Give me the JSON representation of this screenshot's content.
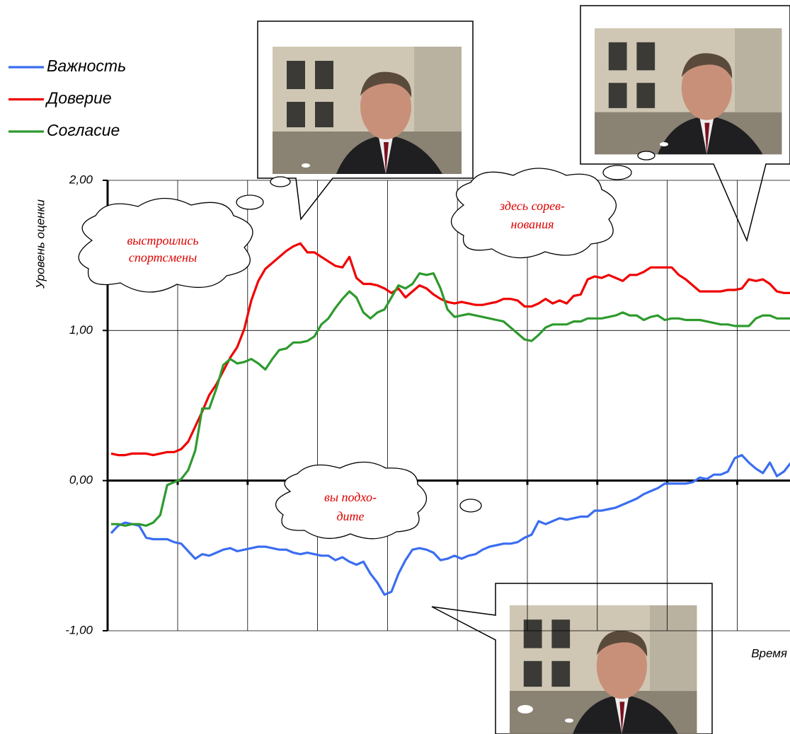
{
  "chart_data": {
    "type": "line",
    "y_label": "Уровень оценки",
    "x_label": "Время",
    "ylim": [
      -1,
      2
    ],
    "yticks": [
      {
        "value": 2,
        "label": "2,00"
      },
      {
        "value": 1,
        "label": "1,00"
      },
      {
        "value": 0,
        "label": "0,00"
      },
      {
        "value": -1,
        "label": "-1,00"
      }
    ],
    "grid": true,
    "legend": "top-left",
    "annotations": [
      [
        "выстроились",
        "спортсмены"
      ],
      [
        "здесь сорев-",
        "нования"
      ],
      [
        "вы подхо-",
        "дите"
      ]
    ],
    "series": [
      {
        "name": "Важность",
        "color": "#3a6df0",
        "values": [
          -0.35,
          -0.3,
          -0.28,
          -0.29,
          -0.3,
          -0.38,
          -0.39,
          -0.39,
          -0.39,
          -0.41,
          -0.42,
          -0.47,
          -0.52,
          -0.49,
          -0.5,
          -0.48,
          -0.46,
          -0.45,
          -0.47,
          -0.46,
          -0.45,
          -0.44,
          -0.44,
          -0.45,
          -0.46,
          -0.46,
          -0.48,
          -0.49,
          -0.48,
          -0.49,
          -0.5,
          -0.5,
          -0.53,
          -0.51,
          -0.54,
          -0.56,
          -0.54,
          -0.62,
          -0.68,
          -0.76,
          -0.74,
          -0.62,
          -0.53,
          -0.46,
          -0.45,
          -0.46,
          -0.48,
          -0.53,
          -0.52,
          -0.5,
          -0.52,
          -0.5,
          -0.49,
          -0.46,
          -0.44,
          -0.43,
          -0.42,
          -0.42,
          -0.41,
          -0.38,
          -0.36,
          -0.27,
          -0.29,
          -0.27,
          -0.25,
          -0.26,
          -0.25,
          -0.24,
          -0.24,
          -0.2,
          -0.2,
          -0.19,
          -0.18,
          -0.16,
          -0.14,
          -0.12,
          -0.09,
          -0.07,
          -0.05,
          -0.02,
          -0.02,
          -0.02,
          -0.02,
          -0.01,
          0.02,
          0.01,
          0.04,
          0.04,
          0.06,
          0.15,
          0.17,
          0.12,
          0.08,
          0.05,
          0.12,
          0.03,
          0.06,
          0.12
        ]
      },
      {
        "name": "Доверие",
        "color": "#f00000",
        "values": [
          0.18,
          0.17,
          0.17,
          0.18,
          0.18,
          0.18,
          0.17,
          0.18,
          0.19,
          0.19,
          0.21,
          0.26,
          0.36,
          0.46,
          0.57,
          0.64,
          0.73,
          0.82,
          0.89,
          1.01,
          1.2,
          1.33,
          1.41,
          1.45,
          1.49,
          1.53,
          1.56,
          1.58,
          1.52,
          1.52,
          1.49,
          1.46,
          1.43,
          1.42,
          1.49,
          1.35,
          1.31,
          1.31,
          1.3,
          1.28,
          1.25,
          1.28,
          1.22,
          1.26,
          1.3,
          1.28,
          1.24,
          1.21,
          1.19,
          1.18,
          1.19,
          1.18,
          1.17,
          1.17,
          1.18,
          1.19,
          1.21,
          1.21,
          1.2,
          1.16,
          1.16,
          1.18,
          1.21,
          1.18,
          1.2,
          1.18,
          1.23,
          1.24,
          1.34,
          1.36,
          1.35,
          1.37,
          1.35,
          1.33,
          1.37,
          1.37,
          1.39,
          1.42,
          1.42,
          1.42,
          1.42,
          1.37,
          1.34,
          1.3,
          1.26,
          1.26,
          1.26,
          1.26,
          1.27,
          1.27,
          1.28,
          1.34,
          1.33,
          1.34,
          1.31,
          1.26,
          1.25,
          1.25
        ]
      },
      {
        "name": "Согласие",
        "color": "#2e9a2e",
        "values": [
          -0.29,
          -0.29,
          -0.3,
          -0.29,
          -0.29,
          -0.3,
          -0.28,
          -0.23,
          -0.03,
          -0.01,
          0.01,
          0.07,
          0.2,
          0.48,
          0.48,
          0.61,
          0.77,
          0.81,
          0.78,
          0.79,
          0.81,
          0.78,
          0.74,
          0.81,
          0.87,
          0.88,
          0.92,
          0.92,
          0.93,
          0.96,
          1.04,
          1.08,
          1.15,
          1.21,
          1.26,
          1.22,
          1.12,
          1.08,
          1.12,
          1.14,
          1.22,
          1.3,
          1.28,
          1.31,
          1.38,
          1.37,
          1.38,
          1.28,
          1.14,
          1.09,
          1.1,
          1.11,
          1.1,
          1.09,
          1.08,
          1.07,
          1.06,
          1.02,
          0.98,
          0.94,
          0.93,
          0.97,
          1.02,
          1.04,
          1.04,
          1.04,
          1.06,
          1.06,
          1.08,
          1.08,
          1.08,
          1.09,
          1.1,
          1.12,
          1.1,
          1.1,
          1.07,
          1.09,
          1.1,
          1.07,
          1.08,
          1.08,
          1.07,
          1.07,
          1.07,
          1.06,
          1.05,
          1.04,
          1.04,
          1.03,
          1.03,
          1.03,
          1.08,
          1.1,
          1.1,
          1.08,
          1.08,
          1.08
        ]
      }
    ]
  }
}
